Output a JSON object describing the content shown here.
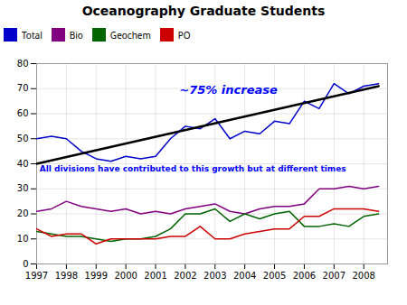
{
  "chart_data": {
    "type": "line",
    "title": "Oceanography Graduate Students",
    "x": [
      1997,
      1997.5,
      1998,
      1998.5,
      1999,
      1999.5,
      2000,
      2000.5,
      2001,
      2001.5,
      2002,
      2002.5,
      2003,
      2003.5,
      2004,
      2004.5,
      2005,
      2005.5,
      2006,
      2006.5,
      2007,
      2007.5,
      2008,
      2008.5
    ],
    "series": [
      {
        "name": "Total",
        "color": "#0000cc",
        "values": [
          50,
          51,
          50,
          45,
          42,
          41,
          43,
          42,
          43,
          50,
          55,
          54,
          58,
          50,
          53,
          52,
          57,
          56,
          65,
          62,
          72,
          68,
          71,
          72
        ]
      },
      {
        "name": "Bio",
        "color": "#800080",
        "values": [
          21,
          22,
          25,
          23,
          22,
          21,
          22,
          20,
          21,
          20,
          22,
          23,
          24,
          21,
          20,
          22,
          23,
          23,
          24,
          30,
          30,
          31,
          30,
          31
        ]
      },
      {
        "name": "Geochem",
        "color": "#006400",
        "values": [
          13,
          12,
          11,
          11,
          10,
          9,
          10,
          10,
          11,
          14,
          20,
          20,
          22,
          17,
          20,
          18,
          20,
          21,
          15,
          15,
          16,
          15,
          19,
          20
        ]
      },
      {
        "name": "PO",
        "color": "#cc0000",
        "values": [
          14,
          11,
          12,
          12,
          8,
          10,
          10,
          10,
          10,
          11,
          11,
          15,
          10,
          10,
          12,
          13,
          14,
          14,
          19,
          19,
          22,
          22,
          22,
          21
        ]
      }
    ],
    "trend_line": {
      "x": [
        1997,
        2008.5
      ],
      "values": [
        40,
        71
      ],
      "color": "#000000"
    },
    "annotations": [
      {
        "text": "~75% increase",
        "x": 2001.8,
        "y": 68,
        "color": "#0000ff"
      },
      {
        "text": "All divisions have contributed to this growth but at different times",
        "x": 1997.1,
        "y": 37,
        "color": "#0000ff"
      }
    ],
    "xlim": [
      1997,
      2008.8
    ],
    "xticks": [
      1997,
      1998,
      1999,
      2000,
      2001,
      2002,
      2003,
      2004,
      2005,
      2006,
      2007,
      2008
    ],
    "ylim": [
      0,
      80
    ],
    "yticks": [
      0,
      10,
      20,
      30,
      40,
      50,
      60,
      70,
      80
    ],
    "grid": true,
    "legend": "top"
  }
}
